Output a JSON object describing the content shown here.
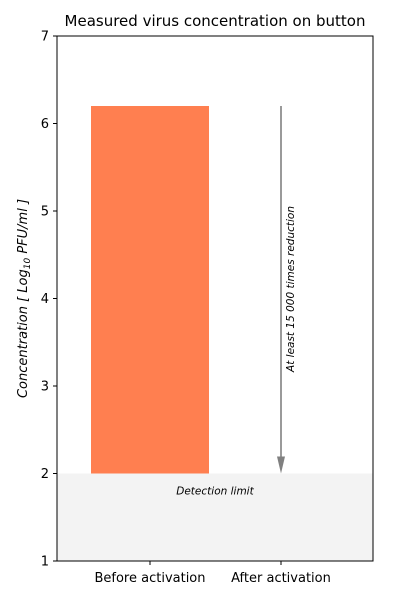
{
  "chart_data": {
    "type": "bar",
    "title": "Measured virus concentration on button",
    "categories": [
      "Before activation",
      "After activation"
    ],
    "bars": [
      {
        "category": "Before activation",
        "bottom": 2.0,
        "top": 6.2
      }
    ],
    "ylabel": {
      "prefix": "Concentration [ Log",
      "sub": "10",
      "suffix": " PFU/ml ]"
    },
    "ylim": [
      1,
      7
    ],
    "yticks": [
      1,
      2,
      3,
      4,
      5,
      6,
      7
    ],
    "detection_limit": {
      "value": 2,
      "label": "Detection limit"
    },
    "reduction_arrow": {
      "category": "After activation",
      "from": 6.2,
      "to": 2.0,
      "label": "At least 15 000 times reduction"
    },
    "colors": {
      "bar": "#FF7F50",
      "detection_band": "#F3F3F3",
      "arrow": "#808080"
    },
    "grid": false
  }
}
